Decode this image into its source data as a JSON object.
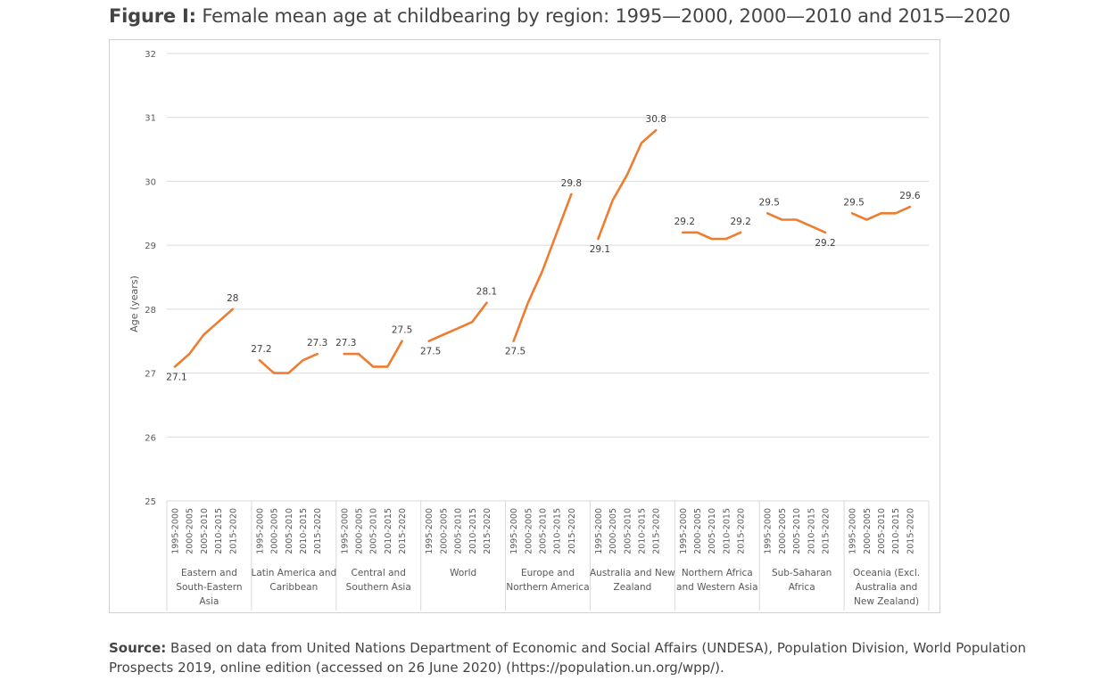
{
  "figure": {
    "title_lead": "Figure I:",
    "title_text": "Female mean age at childbearing by region: 1995—2000, 2000—2010 and 2015—2020"
  },
  "source": {
    "lead": "Source:",
    "text": "Based on data from United Nations Department of Economic and Social Affairs (UNDESA), Population Division, World Population Prospects 2019, online edition (accessed on 26 June 2020) (https://population.un.org/wpp/)."
  },
  "chart_data": {
    "type": "line",
    "title": "Female mean age at childbearing by region: 1995—2000, 2000—2010 and 2015—2020",
    "ylabel": "Age (years)",
    "xlabel": "",
    "ylim": [
      25,
      32
    ],
    "yticks": [
      25,
      26,
      27,
      28,
      29,
      30,
      31,
      32
    ],
    "grid": true,
    "line_color": "#ED7D31",
    "grid_color": "#d9d9d9",
    "periods": [
      "1995-2000",
      "2000-2005",
      "2005-2010",
      "2010-2015",
      "2015-2020"
    ],
    "groups": [
      {
        "name": "Eastern and South-Eastern Asia",
        "label_lines": [
          "Eastern and",
          "South-Eastern",
          "Asia"
        ],
        "values": [
          27.1,
          27.3,
          27.6,
          27.8,
          28.0
        ],
        "labels": [
          "27.1",
          "",
          "",
          "",
          "28"
        ]
      },
      {
        "name": "Latin America and Caribbean",
        "label_lines": [
          "Latin America and",
          "Caribbean"
        ],
        "values": [
          27.2,
          27.0,
          27.0,
          27.2,
          27.3
        ],
        "labels": [
          "27.2",
          "",
          "",
          "",
          "27.3"
        ]
      },
      {
        "name": "Central and Southern Asia",
        "label_lines": [
          "Central and",
          "Southern Asia"
        ],
        "values": [
          27.3,
          27.3,
          27.1,
          27.1,
          27.5
        ],
        "labels": [
          "27.3",
          "",
          "",
          "",
          "27.5"
        ]
      },
      {
        "name": "World",
        "label_lines": [
          "World"
        ],
        "values": [
          27.5,
          27.6,
          27.7,
          27.8,
          28.1
        ],
        "labels": [
          "27.5",
          "",
          "",
          "",
          "28.1"
        ]
      },
      {
        "name": "Europe and Northern America",
        "label_lines": [
          "Europe and",
          "Northern America"
        ],
        "values": [
          27.5,
          28.1,
          28.6,
          29.2,
          29.8
        ],
        "labels": [
          "27.5",
          "",
          "",
          "",
          "29.8"
        ]
      },
      {
        "name": "Australia and New Zealand",
        "label_lines": [
          "Australia and New",
          "Zealand"
        ],
        "values": [
          29.1,
          29.7,
          30.1,
          30.6,
          30.8
        ],
        "labels": [
          "29.1",
          "",
          "",
          "",
          "30.8"
        ]
      },
      {
        "name": "Northern Africa and Western Asia",
        "label_lines": [
          "Northern Africa",
          "and Western Asia"
        ],
        "values": [
          29.2,
          29.2,
          29.1,
          29.1,
          29.2
        ],
        "labels": [
          "29.2",
          "",
          "",
          "",
          "29.2"
        ]
      },
      {
        "name": "Sub-Saharan Africa",
        "label_lines": [
          "Sub-Saharan",
          "Africa"
        ],
        "values": [
          29.5,
          29.4,
          29.4,
          29.3,
          29.2
        ],
        "labels": [
          "29.5",
          "",
          "",
          "",
          "29.2"
        ]
      },
      {
        "name": "Oceania (Excl. Australia and New Zealand)",
        "label_lines": [
          "Oceania (Excl.",
          "Australia and",
          "New Zealand)"
        ],
        "values": [
          29.5,
          29.4,
          29.5,
          29.5,
          29.6
        ],
        "labels": [
          "29.5",
          "",
          "",
          "",
          "29.6"
        ]
      }
    ]
  }
}
